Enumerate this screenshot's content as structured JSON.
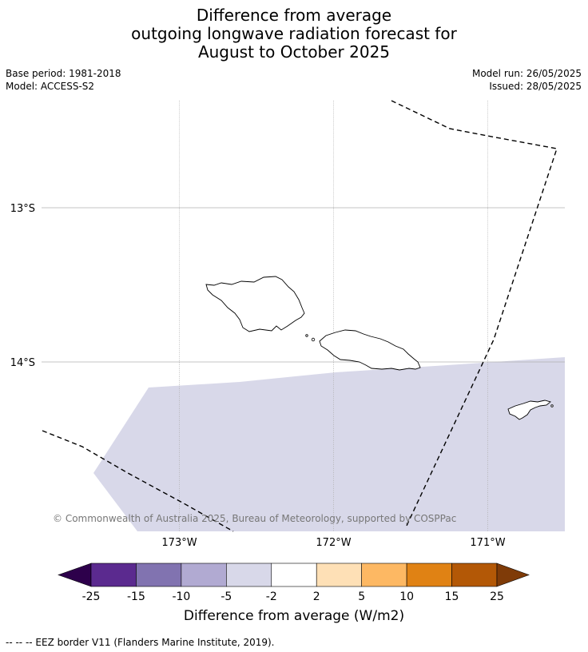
{
  "title": {
    "line1": "Difference from average",
    "line2": "outgoing longwave radiation forecast for",
    "line3": "August to October 2025"
  },
  "meta": {
    "base_period": "Base period: 1981-2018",
    "model": "Model: ACCESS-S2",
    "model_run": "Model run: 26/05/2025",
    "issued": "Issued: 28/05/2025"
  },
  "map": {
    "lat_labels": [
      "13°S",
      "14°S"
    ],
    "lon_labels": [
      "173°W",
      "172°W",
      "171°W"
    ],
    "copyright": "© Commonwealth of Australia 2025, Bureau of Meteorology, supported by COSPPac",
    "anomaly_region_category": "-5 to -2",
    "colors": {
      "anomaly_fill": "#d8d8e9",
      "gridline": "#b0b0b0",
      "coastline": "#000000",
      "eez": "#000000"
    }
  },
  "colorbar": {
    "ticks": [
      "-25",
      "-15",
      "-10",
      "-5",
      "-2",
      "2",
      "5",
      "10",
      "15",
      "25"
    ],
    "colors": [
      "#2d004b",
      "#5b2a8f",
      "#8173b0",
      "#b1aad2",
      "#d8d8e9",
      "#ffffff",
      "#fee0b6",
      "#fdb863",
      "#e08214",
      "#b35806",
      "#7f3b08"
    ],
    "label": "Difference from average (W/m2)"
  },
  "footnote": "--  --  -- EEZ border V11 (Flanders Marine Institute, 2019)."
}
